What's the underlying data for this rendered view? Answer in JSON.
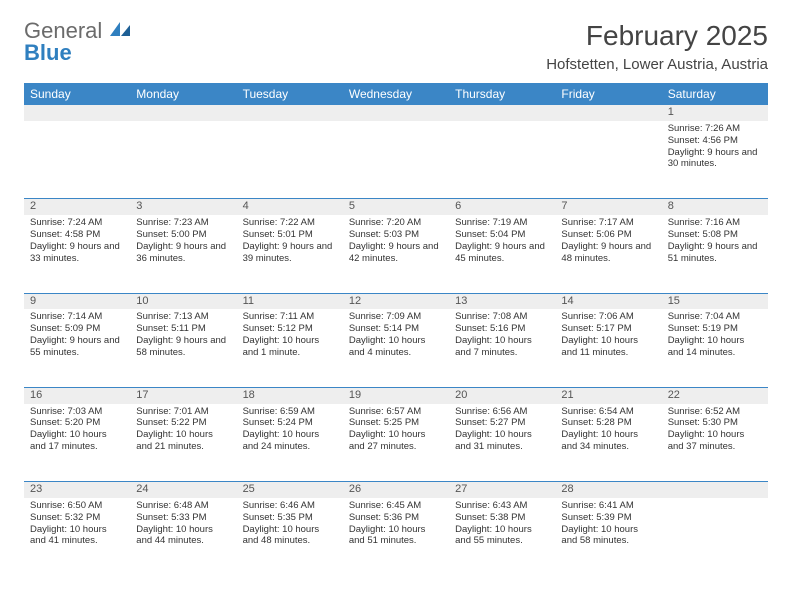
{
  "logo": {
    "textGeneral": "General",
    "textBlue": "Blue"
  },
  "title": "February 2025",
  "location": "Hofstetten, Lower Austria, Austria",
  "weekdays": [
    "Sunday",
    "Monday",
    "Tuesday",
    "Wednesday",
    "Thursday",
    "Friday",
    "Saturday"
  ],
  "colors": {
    "headerBg": "#3b86c6",
    "headerText": "#ffffff",
    "dayBarBg": "#eeeeee",
    "dayBarText": "#555555",
    "bodyText": "#333333",
    "rowBorder": "#3b86c6",
    "logoGray": "#6b6b6b",
    "logoBlue": "#2f7fbf"
  },
  "weeks": [
    [
      null,
      null,
      null,
      null,
      null,
      null,
      {
        "n": "1",
        "sr": "Sunrise: 7:26 AM",
        "ss": "Sunset: 4:56 PM",
        "dl": "Daylight: 9 hours and 30 minutes."
      }
    ],
    [
      {
        "n": "2",
        "sr": "Sunrise: 7:24 AM",
        "ss": "Sunset: 4:58 PM",
        "dl": "Daylight: 9 hours and 33 minutes."
      },
      {
        "n": "3",
        "sr": "Sunrise: 7:23 AM",
        "ss": "Sunset: 5:00 PM",
        "dl": "Daylight: 9 hours and 36 minutes."
      },
      {
        "n": "4",
        "sr": "Sunrise: 7:22 AM",
        "ss": "Sunset: 5:01 PM",
        "dl": "Daylight: 9 hours and 39 minutes."
      },
      {
        "n": "5",
        "sr": "Sunrise: 7:20 AM",
        "ss": "Sunset: 5:03 PM",
        "dl": "Daylight: 9 hours and 42 minutes."
      },
      {
        "n": "6",
        "sr": "Sunrise: 7:19 AM",
        "ss": "Sunset: 5:04 PM",
        "dl": "Daylight: 9 hours and 45 minutes."
      },
      {
        "n": "7",
        "sr": "Sunrise: 7:17 AM",
        "ss": "Sunset: 5:06 PM",
        "dl": "Daylight: 9 hours and 48 minutes."
      },
      {
        "n": "8",
        "sr": "Sunrise: 7:16 AM",
        "ss": "Sunset: 5:08 PM",
        "dl": "Daylight: 9 hours and 51 minutes."
      }
    ],
    [
      {
        "n": "9",
        "sr": "Sunrise: 7:14 AM",
        "ss": "Sunset: 5:09 PM",
        "dl": "Daylight: 9 hours and 55 minutes."
      },
      {
        "n": "10",
        "sr": "Sunrise: 7:13 AM",
        "ss": "Sunset: 5:11 PM",
        "dl": "Daylight: 9 hours and 58 minutes."
      },
      {
        "n": "11",
        "sr": "Sunrise: 7:11 AM",
        "ss": "Sunset: 5:12 PM",
        "dl": "Daylight: 10 hours and 1 minute."
      },
      {
        "n": "12",
        "sr": "Sunrise: 7:09 AM",
        "ss": "Sunset: 5:14 PM",
        "dl": "Daylight: 10 hours and 4 minutes."
      },
      {
        "n": "13",
        "sr": "Sunrise: 7:08 AM",
        "ss": "Sunset: 5:16 PM",
        "dl": "Daylight: 10 hours and 7 minutes."
      },
      {
        "n": "14",
        "sr": "Sunrise: 7:06 AM",
        "ss": "Sunset: 5:17 PM",
        "dl": "Daylight: 10 hours and 11 minutes."
      },
      {
        "n": "15",
        "sr": "Sunrise: 7:04 AM",
        "ss": "Sunset: 5:19 PM",
        "dl": "Daylight: 10 hours and 14 minutes."
      }
    ],
    [
      {
        "n": "16",
        "sr": "Sunrise: 7:03 AM",
        "ss": "Sunset: 5:20 PM",
        "dl": "Daylight: 10 hours and 17 minutes."
      },
      {
        "n": "17",
        "sr": "Sunrise: 7:01 AM",
        "ss": "Sunset: 5:22 PM",
        "dl": "Daylight: 10 hours and 21 minutes."
      },
      {
        "n": "18",
        "sr": "Sunrise: 6:59 AM",
        "ss": "Sunset: 5:24 PM",
        "dl": "Daylight: 10 hours and 24 minutes."
      },
      {
        "n": "19",
        "sr": "Sunrise: 6:57 AM",
        "ss": "Sunset: 5:25 PM",
        "dl": "Daylight: 10 hours and 27 minutes."
      },
      {
        "n": "20",
        "sr": "Sunrise: 6:56 AM",
        "ss": "Sunset: 5:27 PM",
        "dl": "Daylight: 10 hours and 31 minutes."
      },
      {
        "n": "21",
        "sr": "Sunrise: 6:54 AM",
        "ss": "Sunset: 5:28 PM",
        "dl": "Daylight: 10 hours and 34 minutes."
      },
      {
        "n": "22",
        "sr": "Sunrise: 6:52 AM",
        "ss": "Sunset: 5:30 PM",
        "dl": "Daylight: 10 hours and 37 minutes."
      }
    ],
    [
      {
        "n": "23",
        "sr": "Sunrise: 6:50 AM",
        "ss": "Sunset: 5:32 PM",
        "dl": "Daylight: 10 hours and 41 minutes."
      },
      {
        "n": "24",
        "sr": "Sunrise: 6:48 AM",
        "ss": "Sunset: 5:33 PM",
        "dl": "Daylight: 10 hours and 44 minutes."
      },
      {
        "n": "25",
        "sr": "Sunrise: 6:46 AM",
        "ss": "Sunset: 5:35 PM",
        "dl": "Daylight: 10 hours and 48 minutes."
      },
      {
        "n": "26",
        "sr": "Sunrise: 6:45 AM",
        "ss": "Sunset: 5:36 PM",
        "dl": "Daylight: 10 hours and 51 minutes."
      },
      {
        "n": "27",
        "sr": "Sunrise: 6:43 AM",
        "ss": "Sunset: 5:38 PM",
        "dl": "Daylight: 10 hours and 55 minutes."
      },
      {
        "n": "28",
        "sr": "Sunrise: 6:41 AM",
        "ss": "Sunset: 5:39 PM",
        "dl": "Daylight: 10 hours and 58 minutes."
      },
      null
    ]
  ]
}
